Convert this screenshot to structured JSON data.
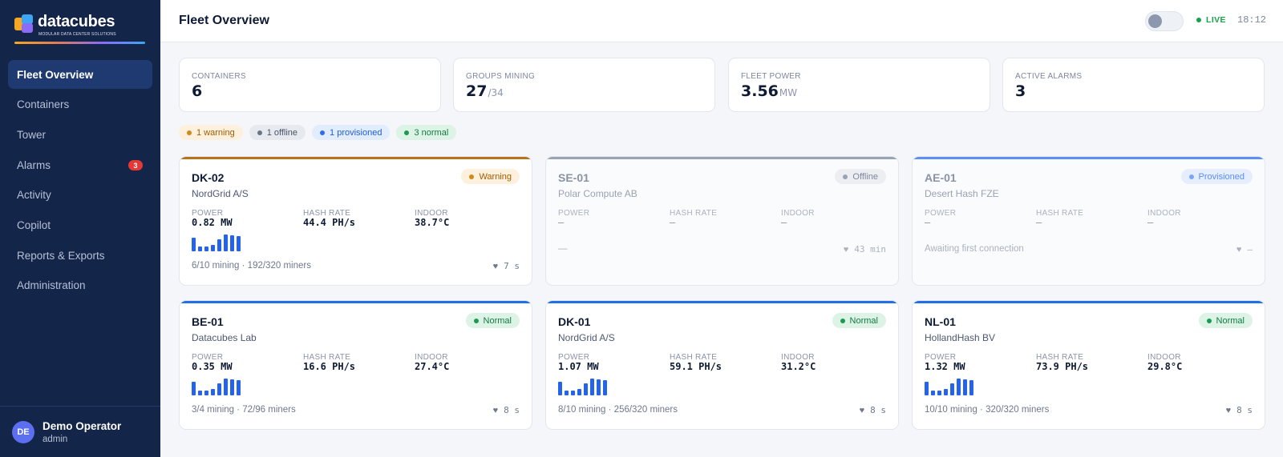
{
  "brand": {
    "name": "datacubes",
    "tagline": "MODULAR DATA CENTER SOLUTIONS"
  },
  "sidebar": {
    "items": [
      {
        "label": "Fleet Overview",
        "active": true
      },
      {
        "label": "Containers"
      },
      {
        "label": "Tower"
      },
      {
        "label": "Alarms",
        "badge": "3"
      },
      {
        "label": "Activity"
      },
      {
        "label": "Copilot"
      },
      {
        "label": "Reports & Exports"
      },
      {
        "label": "Administration"
      }
    ]
  },
  "user": {
    "initials": "DE",
    "name": "Demo Operator",
    "role": "admin"
  },
  "header": {
    "title": "Fleet Overview",
    "live": "LIVE",
    "time": "18:12"
  },
  "kpis": [
    {
      "label": "CONTAINERS",
      "value": "6",
      "unit": ""
    },
    {
      "label": "GROUPS MINING",
      "value": "27",
      "unit": "/34"
    },
    {
      "label": "FLEET POWER",
      "value": "3.56",
      "unit": "MW"
    },
    {
      "label": "ACTIVE ALARMS",
      "value": "3",
      "unit": ""
    }
  ],
  "pills": [
    {
      "label": "1 warning",
      "bg": "#fdf0dc",
      "fg": "#a15c07",
      "dot": "#d18a1a"
    },
    {
      "label": "1 offline",
      "bg": "#e6e9ee",
      "fg": "#4a5468",
      "dot": "#6b7486"
    },
    {
      "label": "1 provisioned",
      "bg": "#e1ecfd",
      "fg": "#2160d3",
      "dot": "#2b6cf0"
    },
    {
      "label": "3 normal",
      "bg": "#dcf3e6",
      "fg": "#137a43",
      "dot": "#1a9a52"
    }
  ],
  "metric_labels": {
    "power": "POWER",
    "hash": "HASH RATE",
    "indoor": "INDOOR"
  },
  "cards": [
    {
      "id": "DK-02",
      "org": "NordGrid A/S",
      "status": "Warning",
      "power": "0.82 MW",
      "hash": "44.4 PH/s",
      "indoor": "38.7°C",
      "footer": "6/10 mining · 192/320 miners",
      "heartbeat": "7 s",
      "topColor": "#b8731a",
      "statusBg": "#fdf0dc",
      "statusFg": "#a15c07",
      "statusDot": "#d18a1a",
      "dim": false,
      "spark": [
        0.8,
        0.3,
        0.3,
        0.4,
        0.7,
        1.0,
        0.95,
        0.9
      ]
    },
    {
      "id": "SE-01",
      "org": "Polar Compute AB",
      "status": "Offline",
      "power": "—",
      "hash": "—",
      "indoor": "—",
      "footer": "—",
      "heartbeat": "43 min",
      "topColor": "#9aa3b3",
      "statusBg": "#eceef2",
      "statusFg": "#7d879a",
      "statusDot": "#9aa3b3",
      "dim": true,
      "spark": []
    },
    {
      "id": "AE-01",
      "org": "Desert Hash FZE",
      "status": "Provisioned",
      "power": "—",
      "hash": "—",
      "indoor": "—",
      "footer": "Awaiting first connection",
      "heartbeat": "—",
      "topColor": "#5b8ff5",
      "statusBg": "#e6eefd",
      "statusFg": "#5b8ff5",
      "statusDot": "#7aa5f8",
      "dim": true,
      "spark": []
    },
    {
      "id": "BE-01",
      "org": "Datacubes Lab",
      "status": "Normal",
      "power": "0.35 MW",
      "hash": "16.6 PH/s",
      "indoor": "27.4°C",
      "footer": "3/4 mining · 72/96 miners",
      "heartbeat": "8 s",
      "topColor": "#1e6fe8",
      "statusBg": "#dcf3e6",
      "statusFg": "#137a43",
      "statusDot": "#1a9a52",
      "dim": false,
      "spark": [
        0.8,
        0.3,
        0.3,
        0.4,
        0.7,
        1.0,
        0.95,
        0.9
      ]
    },
    {
      "id": "DK-01",
      "org": "NordGrid A/S",
      "status": "Normal",
      "power": "1.07 MW",
      "hash": "59.1 PH/s",
      "indoor": "31.2°C",
      "footer": "8/10 mining · 256/320 miners",
      "heartbeat": "8 s",
      "topColor": "#1e6fe8",
      "statusBg": "#dcf3e6",
      "statusFg": "#137a43",
      "statusDot": "#1a9a52",
      "dim": false,
      "spark": [
        0.8,
        0.3,
        0.3,
        0.4,
        0.7,
        1.0,
        0.95,
        0.9
      ]
    },
    {
      "id": "NL-01",
      "org": "HollandHash BV",
      "status": "Normal",
      "power": "1.32 MW",
      "hash": "73.9 PH/s",
      "indoor": "29.8°C",
      "footer": "10/10 mining · 320/320 miners",
      "heartbeat": "8 s",
      "topColor": "#1e6fe8",
      "statusBg": "#dcf3e6",
      "statusFg": "#137a43",
      "statusDot": "#1a9a52",
      "dim": false,
      "spark": [
        0.8,
        0.3,
        0.3,
        0.4,
        0.7,
        1.0,
        0.95,
        0.9
      ]
    }
  ]
}
